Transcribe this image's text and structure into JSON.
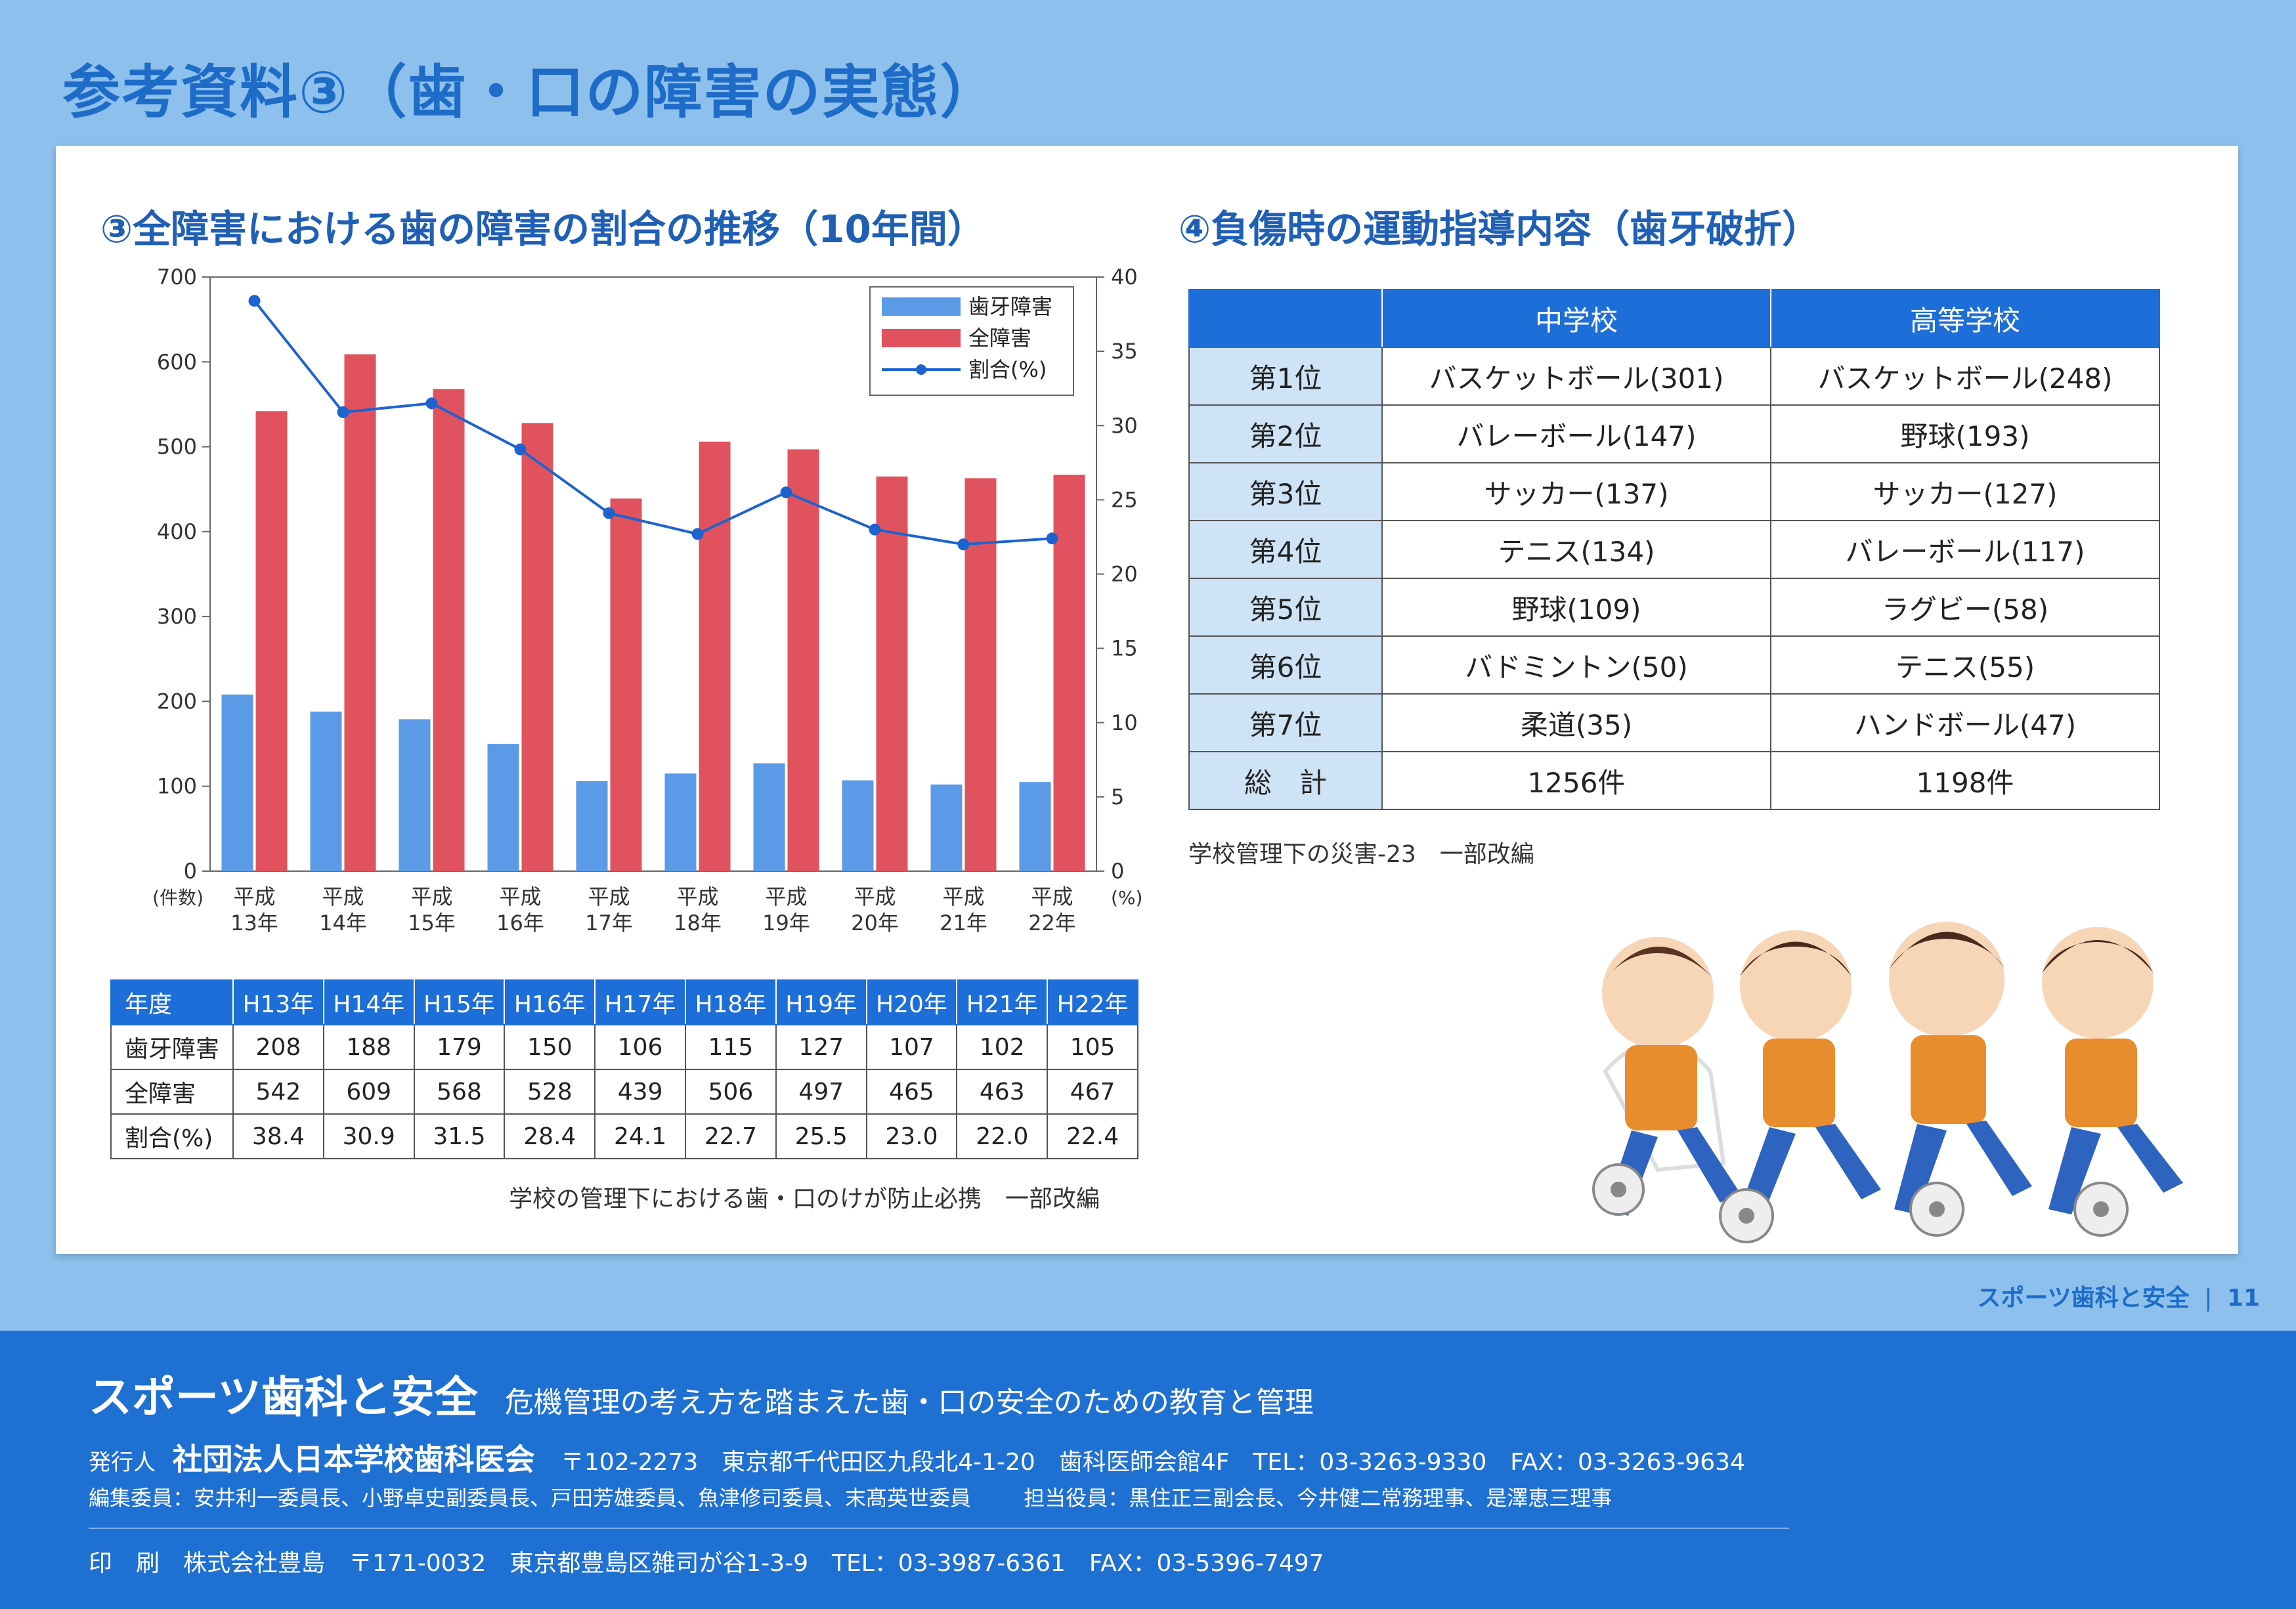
{
  "page_title": "参考資料③（歯・口の障害の実態）",
  "left_section": {
    "heading": "③全障害における歯の障害の割合の推移（10年間）",
    "unit_left": "(件数)",
    "unit_right": "(%)",
    "source": "学校の管理下における歯・口のけが防止必携　一部改編",
    "table": {
      "header_label": "年度",
      "years": [
        "H13年",
        "H14年",
        "H15年",
        "H16年",
        "H17年",
        "H18年",
        "H19年",
        "H20年",
        "H21年",
        "H22年"
      ],
      "rows": [
        {
          "label": "歯牙障害",
          "values": [
            "208",
            "188",
            "179",
            "150",
            "106",
            "115",
            "127",
            "107",
            "102",
            "105"
          ]
        },
        {
          "label": "全障害",
          "values": [
            "542",
            "609",
            "568",
            "528",
            "439",
            "506",
            "497",
            "465",
            "463",
            "467"
          ]
        },
        {
          "label": "割合(%)",
          "values": [
            "38.4",
            "30.9",
            "31.5",
            "28.4",
            "24.1",
            "22.7",
            "25.5",
            "23.0",
            "22.0",
            "22.4"
          ]
        }
      ]
    }
  },
  "chart_data": {
    "type": "bar",
    "categories": [
      [
        "平成",
        "13年"
      ],
      [
        "平成",
        "14年"
      ],
      [
        "平成",
        "15年"
      ],
      [
        "平成",
        "16年"
      ],
      [
        "平成",
        "17年"
      ],
      [
        "平成",
        "18年"
      ],
      [
        "平成",
        "19年"
      ],
      [
        "平成",
        "20年"
      ],
      [
        "平成",
        "21年"
      ],
      [
        "平成",
        "22年"
      ]
    ],
    "series": [
      {
        "name": "歯牙障害",
        "type": "bar",
        "axis": "left",
        "color": "#5b9ae6",
        "values": [
          208,
          188,
          179,
          150,
          106,
          115,
          127,
          107,
          102,
          105
        ]
      },
      {
        "name": "全障害",
        "type": "bar",
        "axis": "left",
        "color": "#e0525d",
        "values": [
          542,
          609,
          568,
          528,
          439,
          506,
          497,
          465,
          463,
          467
        ]
      },
      {
        "name": "割合(%)",
        "type": "line",
        "axis": "right",
        "color": "#1d63d0",
        "values": [
          38.4,
          30.9,
          31.5,
          28.4,
          24.1,
          22.7,
          25.5,
          23.0,
          22.0,
          22.4
        ]
      }
    ],
    "ylim": [
      0,
      700
    ],
    "yticks": [
      0,
      100,
      200,
      300,
      400,
      500,
      600,
      700
    ],
    "y2lim": [
      0,
      40
    ],
    "y2ticks": [
      0,
      5,
      10,
      15,
      20,
      25,
      30,
      35,
      40
    ],
    "legend_position": "top-right",
    "grid": false
  },
  "right_section": {
    "heading": "④負傷時の運動指導内容（歯牙破折）",
    "columns": [
      "中学校",
      "高等学校"
    ],
    "rows": [
      {
        "rank": "第1位",
        "middle": "バスケットボール(301)",
        "high": "バスケットボール(248)"
      },
      {
        "rank": "第2位",
        "middle": "バレーボール(147)",
        "high": "野球(193)"
      },
      {
        "rank": "第3位",
        "middle": "サッカー(137)",
        "high": "サッカー(127)"
      },
      {
        "rank": "第4位",
        "middle": "テニス(134)",
        "high": "バレーボール(117)"
      },
      {
        "rank": "第5位",
        "middle": "野球(109)",
        "high": "ラグビー(58)"
      },
      {
        "rank": "第6位",
        "middle": "バドミントン(50)",
        "high": "テニス(55)"
      },
      {
        "rank": "第7位",
        "middle": "柔道(35)",
        "high": "ハンドボール(47)"
      },
      {
        "rank": "総　計",
        "middle": "1256件",
        "high": "1198件"
      }
    ],
    "source": "学校管理下の災害-23　一部改編"
  },
  "page_mark": {
    "label": "スポーツ歯科と安全",
    "number": "11"
  },
  "footer": {
    "title": "スポーツ歯科と安全",
    "subtitle": "危機管理の考え方を踏まえた歯・口の安全のための教育と管理",
    "publisher_label": "発行人",
    "publisher_name": "社団法人日本学校歯科医会",
    "publisher_info": "〒102-2273　東京都千代田区九段北4-1-20　歯科医師会館4F　TEL：03-3263-9330　FAX：03-3263-9634",
    "editors": "編集委員：安井利一委員長、小野卓史副委員長、戸田芳雄委員、魚津修司委員、末髙英世委員",
    "officers": "担当役員：黒住正三副会長、今井健二常務理事、是澤恵三理事",
    "printer": "印　刷　株式会社豊島　〒171-0032　東京都豊島区雑司が谷1-3-9　TEL：03-3987-6361　FAX：03-5396-7497"
  }
}
